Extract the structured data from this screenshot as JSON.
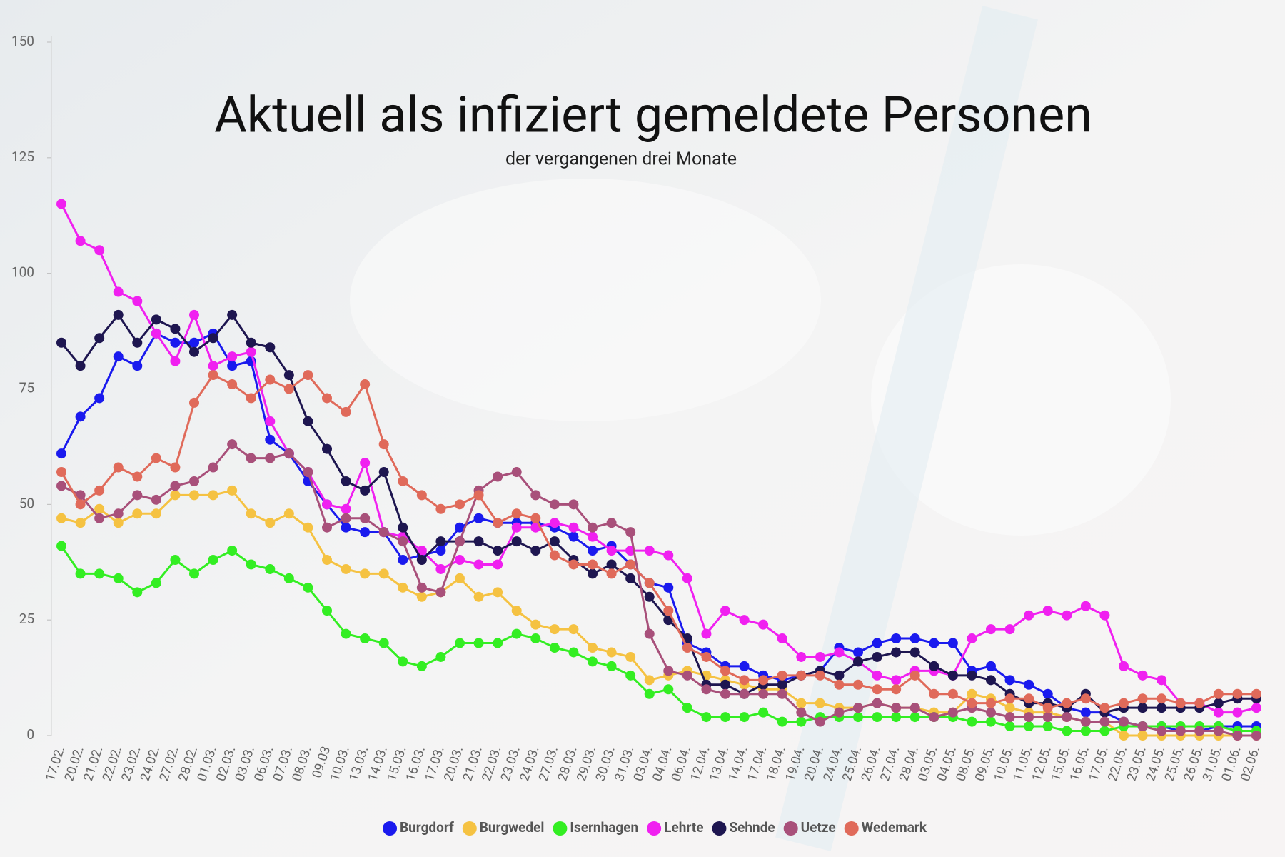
{
  "chart_data": {
    "type": "line",
    "title": "Aktuell als infiziert gemeldete Personen",
    "subtitle": "der vergangenen drei Monate",
    "categories": [
      "17.02.",
      "20.02.",
      "21.02.",
      "22.02.",
      "23.02.",
      "24.02.",
      "27.02.",
      "28.02.",
      "01.03.",
      "02.03.",
      "03.03.",
      "06.03.",
      "07.03.",
      "08.03.",
      "09.03",
      "10.03.",
      "13.03.",
      "14.03.",
      "15.03.",
      "16.03.",
      "17.03.",
      "20.03.",
      "21.03.",
      "22.03.",
      "23.03.",
      "24.03.",
      "27.03.",
      "28.03.",
      "29.03.",
      "30.03.",
      "31.03.",
      "03.04.",
      "04.04.",
      "06.04.",
      "12.04.",
      "13.04.",
      "14.04.",
      "17.04.",
      "18.04.",
      "19.04.",
      "20.04.",
      "24.04.",
      "25.04.",
      "26.04.",
      "27.04.",
      "28.04.",
      "03.05.",
      "04.05.",
      "08.05.",
      "09.05.",
      "10.05.",
      "11.05.",
      "12.05.",
      "15.05.",
      "16.05.",
      "17.05.",
      "22.05.",
      "23.05.",
      "24.05.",
      "25.05.",
      "26.05.",
      "31.05.",
      "01.06.",
      "02.06."
    ],
    "series": [
      {
        "name": "Burgdorf",
        "color": "#1a1aee",
        "values": [
          61,
          69,
          73,
          82,
          80,
          87,
          85,
          85,
          87,
          80,
          81,
          64,
          61,
          55,
          50,
          45,
          44,
          44,
          38,
          39,
          40,
          45,
          47,
          46,
          46,
          46,
          45,
          43,
          40,
          41,
          37,
          33,
          32,
          20,
          18,
          15,
          15,
          13,
          12,
          13,
          14,
          19,
          18,
          20,
          21,
          21,
          20,
          20,
          14,
          15,
          12,
          11,
          9,
          6,
          5,
          5,
          3,
          2,
          2,
          1,
          1,
          2,
          2,
          2
        ]
      },
      {
        "name": "Burgwedel",
        "color": "#f5c242",
        "values": [
          47,
          46,
          49,
          46,
          48,
          48,
          52,
          52,
          52,
          53,
          48,
          46,
          48,
          45,
          38,
          36,
          35,
          35,
          32,
          30,
          31,
          34,
          30,
          31,
          27,
          24,
          23,
          23,
          19,
          18,
          17,
          12,
          13,
          14,
          13,
          12,
          11,
          10,
          10,
          7,
          7,
          6,
          6,
          7,
          6,
          6,
          5,
          5,
          9,
          8,
          6,
          5,
          5,
          4,
          3,
          3,
          0,
          0,
          0,
          0,
          0,
          0,
          0,
          0
        ]
      },
      {
        "name": "Isernhagen",
        "color": "#33ee22",
        "values": [
          41,
          35,
          35,
          34,
          31,
          33,
          38,
          35,
          38,
          40,
          37,
          36,
          34,
          32,
          27,
          22,
          21,
          20,
          16,
          15,
          17,
          20,
          20,
          20,
          22,
          21,
          19,
          18,
          16,
          15,
          13,
          9,
          10,
          6,
          4,
          4,
          4,
          5,
          3,
          3,
          4,
          4,
          4,
          4,
          4,
          4,
          4,
          4,
          3,
          3,
          2,
          2,
          2,
          1,
          1,
          1,
          2,
          2,
          2,
          2,
          2,
          2,
          1,
          1
        ]
      },
      {
        "name": "Lehrte",
        "color": "#f020f0",
        "values": [
          115,
          107,
          105,
          96,
          94,
          87,
          81,
          91,
          80,
          82,
          83,
          68,
          61,
          57,
          50,
          49,
          59,
          44,
          43,
          40,
          36,
          38,
          37,
          37,
          45,
          45,
          46,
          45,
          43,
          40,
          40,
          40,
          39,
          34,
          22,
          27,
          25,
          24,
          21,
          17,
          17,
          18,
          16,
          13,
          12,
          14,
          14,
          13,
          21,
          23,
          23,
          26,
          27,
          26,
          28,
          26,
          15,
          13,
          12,
          7,
          7,
          5,
          5,
          6
        ]
      },
      {
        "name": "Sehnde",
        "color": "#1e1650",
        "values": [
          85,
          80,
          86,
          91,
          85,
          90,
          88,
          83,
          86,
          91,
          85,
          84,
          78,
          68,
          62,
          55,
          53,
          57,
          45,
          38,
          42,
          42,
          42,
          40,
          42,
          40,
          42,
          38,
          35,
          37,
          34,
          30,
          25,
          21,
          11,
          11,
          9,
          11,
          11,
          13,
          14,
          13,
          16,
          17,
          18,
          18,
          15,
          13,
          13,
          12,
          9,
          7,
          7,
          6,
          9,
          5,
          6,
          6,
          6,
          6,
          6,
          7,
          8,
          8
        ]
      },
      {
        "name": "Uetze",
        "color": "#a8507a",
        "values": [
          54,
          52,
          47,
          48,
          52,
          51,
          54,
          55,
          58,
          63,
          60,
          60,
          61,
          57,
          45,
          47,
          47,
          44,
          42,
          32,
          31,
          42,
          53,
          56,
          57,
          52,
          50,
          50,
          45,
          46,
          44,
          22,
          14,
          13,
          10,
          9,
          9,
          9,
          9,
          5,
          3,
          5,
          6,
          7,
          6,
          6,
          4,
          5,
          6,
          5,
          4,
          4,
          4,
          4,
          3,
          3,
          3,
          2,
          1,
          1,
          1,
          1,
          0,
          0
        ]
      },
      {
        "name": "Wedemark",
        "color": "#e06a5a",
        "values": [
          57,
          50,
          53,
          58,
          56,
          60,
          58,
          72,
          78,
          76,
          73,
          77,
          75,
          78,
          73,
          70,
          76,
          63,
          55,
          52,
          49,
          50,
          52,
          46,
          48,
          47,
          39,
          37,
          37,
          35,
          37,
          33,
          27,
          19,
          17,
          14,
          12,
          12,
          13,
          13,
          13,
          11,
          11,
          10,
          10,
          13,
          9,
          9,
          7,
          7,
          8,
          8,
          6,
          7,
          8,
          6,
          7,
          8,
          8,
          7,
          7,
          9,
          9,
          9
        ]
      }
    ],
    "ylim": [
      0,
      150
    ],
    "yticks": [
      0,
      25,
      50,
      75,
      100,
      125,
      150
    ],
    "grid": false,
    "legend": "bottom"
  }
}
